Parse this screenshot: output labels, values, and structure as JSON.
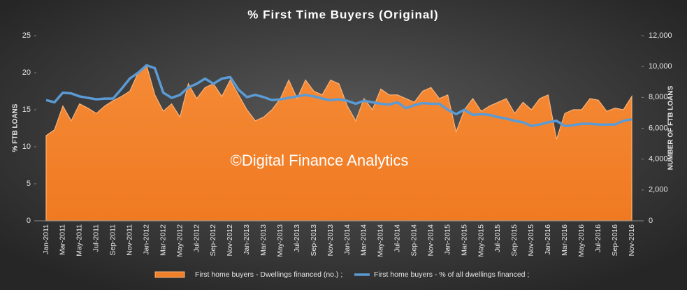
{
  "chart_data": {
    "type": "combo",
    "title": "% First Time Buyers (Original)",
    "annotation": "©Digital Finance Analytics",
    "ylabel": "% FTB LOANS",
    "y2label": "NUMBER OF FTB LOANS",
    "categories": [
      "Jan-2011",
      null,
      "Mar-2011",
      null,
      "May-2011",
      null,
      "Jul-2011",
      null,
      "Sep-2011",
      null,
      "Nov-2011",
      null,
      "Jan-2012",
      null,
      "Mar-2012",
      null,
      "May-2012",
      null,
      "Jul-2012",
      null,
      "Sep-2012",
      null,
      "Nov-2012",
      null,
      "Jan-2013",
      null,
      "Mar-2013",
      null,
      "May-2013",
      null,
      "Jul-2013",
      null,
      "Sep-2013",
      null,
      "Nov-2013",
      null,
      "Jan-2014",
      null,
      "Mar-2014",
      null,
      "May-2014",
      null,
      "Jul-2014",
      null,
      "Sep-2014",
      null,
      "Nov-2014",
      null,
      "Jan-2015",
      null,
      "Mar-2015",
      null,
      "May-2015",
      null,
      "Jul-2015",
      null,
      "Sep-2015",
      null,
      "Nov-2015",
      null,
      "Jan-2016",
      null,
      "Mar-2016",
      null,
      "May-2016",
      null,
      "Jul-2016",
      null,
      "Sep-2016",
      null,
      "Nov-2016"
    ],
    "series": [
      {
        "name": "First home buyers - Dwellings financed (no.) ;",
        "type": "area",
        "axis": "y2",
        "color": "#f07f2a",
        "values": [
          5520,
          5900,
          7440,
          6480,
          7580,
          7300,
          6960,
          7440,
          7780,
          8060,
          8400,
          9600,
          10080,
          8160,
          7100,
          7580,
          6720,
          8880,
          7920,
          8640,
          8880,
          8060,
          9120,
          8160,
          7200,
          6480,
          6720,
          7200,
          7920,
          9120,
          7920,
          9120,
          8400,
          8160,
          9120,
          8880,
          7440,
          6480,
          7920,
          7200,
          8540,
          8160,
          8160,
          7920,
          7680,
          8400,
          8640,
          7920,
          8160,
          5760,
          7200,
          7920,
          7100,
          7440,
          7680,
          7920,
          6960,
          7680,
          7200,
          7920,
          8160,
          5280,
          6960,
          7200,
          7200,
          7920,
          7820,
          7100,
          7300,
          7200,
          8060
        ]
      },
      {
        "name": "First home buyers - % of all dwellings financed ;",
        "type": "line",
        "axis": "y",
        "color": "#5b9bd5",
        "values": [
          16.3,
          16.0,
          17.3,
          17.2,
          16.8,
          16.6,
          16.4,
          16.5,
          16.5,
          17.8,
          19.2,
          20.0,
          21.0,
          20.6,
          17.3,
          16.6,
          17.0,
          18.0,
          18.5,
          19.2,
          18.5,
          19.2,
          19.4,
          17.7,
          16.7,
          17.0,
          16.7,
          16.3,
          16.4,
          16.6,
          16.8,
          17.0,
          16.8,
          16.5,
          16.3,
          16.4,
          16.2,
          15.8,
          16.2,
          16.0,
          15.8,
          15.7,
          16.0,
          15.2,
          15.6,
          15.9,
          15.8,
          15.8,
          15.0,
          14.4,
          15.0,
          14.3,
          14.4,
          14.3,
          14.0,
          13.8,
          13.5,
          13.3,
          12.8,
          13.0,
          13.3,
          13.5,
          12.8,
          12.9,
          13.1,
          13.1,
          13.0,
          13.0,
          13.0,
          13.5,
          13.7
        ]
      }
    ],
    "ylim": [
      0,
      25
    ],
    "yticks": [
      0,
      5,
      10,
      15,
      20,
      25
    ],
    "y2lim": [
      0,
      12000
    ],
    "y2ticks": [
      0,
      {
        "value": 2000,
        "label": "2,000"
      },
      {
        "value": 4000,
        "label": "4,000"
      },
      {
        "value": 6000,
        "label": "6,000"
      },
      {
        "value": 8000,
        "label": "8,000"
      },
      {
        "value": 10000,
        "label": "10,000"
      },
      {
        "value": 12000,
        "label": "12,000"
      }
    ],
    "grid": false,
    "legend": "bottom"
  }
}
